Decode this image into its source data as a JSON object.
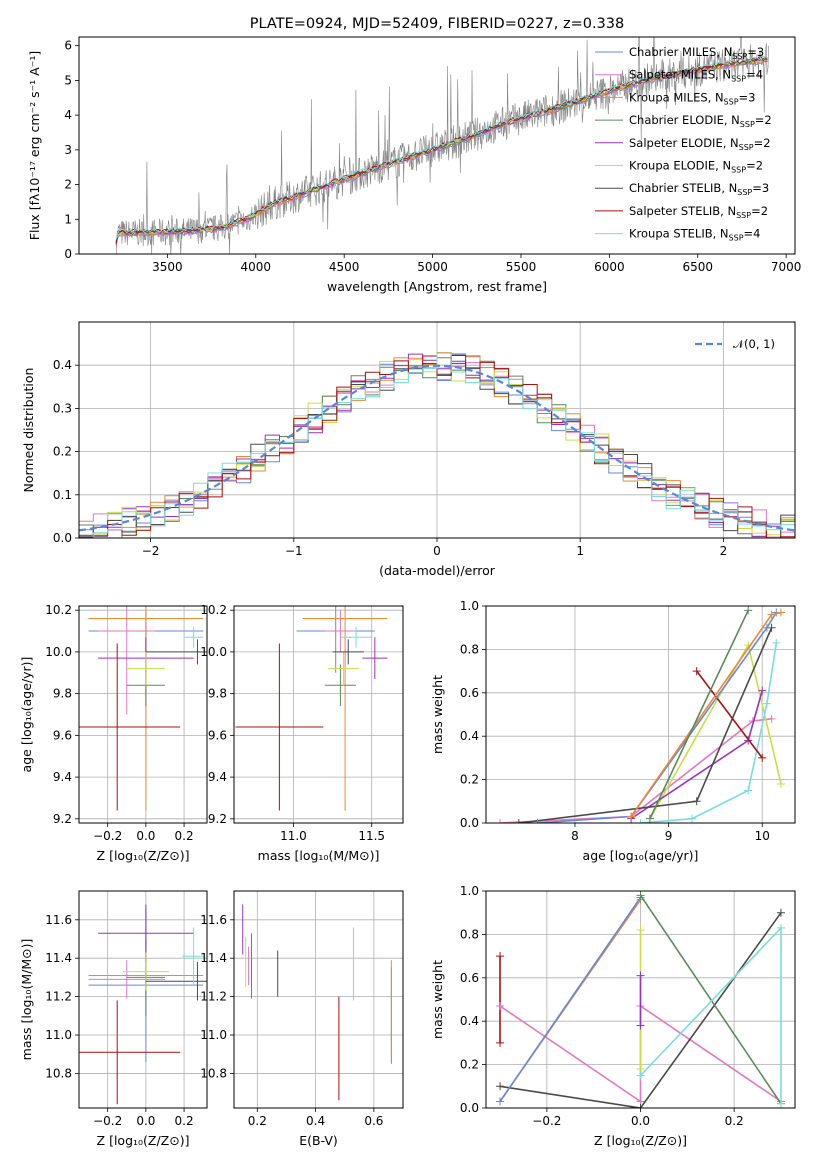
{
  "colors": {
    "chabrier_miles": "#6688dd",
    "salpeter_miles": "#e377c2",
    "kroupa_miles": "#ee8833",
    "chabrier_elodie": "#5a8a5a",
    "salpeter_elodie": "#9933bb",
    "kroupa_elodie": "#ccdd44",
    "chabrier_stelib": "#4a4a4a",
    "salpeter_stelib": "#aa1111",
    "kroupa_stelib": "#77dddd",
    "spectrum": "#808080",
    "normal": "#5588dd"
  },
  "chart_data": [
    {
      "id": "spectrum",
      "type": "line",
      "title": "PLATE=0924, MJD=52409, FIBERID=0227, z=0.338",
      "xlabel": "wavelength [Angstrom, rest frame]",
      "ylabel": "Flux [fλ10⁻¹⁷ erg cm⁻² s⁻¹ A⁻¹]",
      "xlim": [
        3000,
        7050
      ],
      "ylim": [
        0,
        6.25
      ],
      "xticks": [
        "3500",
        "4000",
        "4500",
        "5000",
        "5500",
        "6000",
        "6500",
        "7000"
      ],
      "yticks": [
        "0",
        "1",
        "2",
        "3",
        "4",
        "5",
        "6"
      ],
      "grid": false,
      "legend_position": "top-right",
      "legend": [
        "Chabrier MILES, N_SSP=3",
        "Salpeter MILES, N_SSP=4",
        "Kroupa MILES, N_SSP=3",
        "Chabrier ELODIE, N_SSP=2",
        "Salpeter ELODIE, N_SSP=2",
        "Kroupa ELODIE, N_SSP=2",
        "Chabrier STELIB, N_SSP=3",
        "Salpeter STELIB, N_SSP=2",
        "Kroupa STELIB, N_SSP=4"
      ],
      "model_x": [
        3210,
        3220,
        3400,
        3600,
        3800,
        3950,
        4100,
        4300,
        4500,
        4700,
        4850,
        5000,
        5200,
        5400,
        5600,
        5800,
        6000,
        6200,
        6400,
        6600,
        6800,
        6900
      ],
      "model_y": [
        0.3,
        0.6,
        0.62,
        0.65,
        0.75,
        1.0,
        1.45,
        1.8,
        2.15,
        2.5,
        2.75,
        3.0,
        3.35,
        3.75,
        4.05,
        4.35,
        4.7,
        5.0,
        5.2,
        5.4,
        5.55,
        5.6
      ]
    },
    {
      "id": "residuals",
      "type": "histogram",
      "xlabel": "(data-model)/error",
      "ylabel": "Normed distribution",
      "xlim": [
        -2.5,
        2.5
      ],
      "ylim": [
        0,
        0.5
      ],
      "xticks": [
        "−2",
        "−1",
        "0",
        "1",
        "2"
      ],
      "yticks": [
        "0.0",
        "0.1",
        "0.2",
        "0.3",
        "0.4"
      ],
      "grid": true,
      "legend_position": "top-right",
      "legend": [
        "𝒩(0, 1)"
      ]
    },
    {
      "id": "age_vs_Z",
      "type": "scatter",
      "xlabel": "Z [log₁₀(Z/Z⊙)]",
      "ylabel": "age  [log₁₀(age/yr)]",
      "xlim": [
        -0.35,
        0.32
      ],
      "ylim": [
        9.18,
        10.22
      ],
      "xticks": [
        "−0.2",
        "0.0",
        "0.2"
      ],
      "yticks": [
        "9.2",
        "9.4",
        "9.6",
        "9.8",
        "10.0",
        "10.2"
      ],
      "grid": true,
      "points": [
        {
          "series": "chabrier_miles",
          "x": 0.0,
          "y": 10.1,
          "xerr": 0.3,
          "yerr": 0.1
        },
        {
          "series": "salpeter_miles",
          "x": -0.1,
          "y": 10.1,
          "xerr": 0.15,
          "yerr": 0.4
        },
        {
          "series": "kroupa_miles",
          "x": 0.0,
          "y": 10.16,
          "xerr": 0.3,
          "yerr": 0.92
        },
        {
          "series": "chabrier_elodie",
          "x": 0.0,
          "y": 9.84,
          "xerr": 0.1,
          "yerr": 0.1
        },
        {
          "series": "salpeter_elodie",
          "x": 0.0,
          "y": 9.97,
          "xerr": 0.25,
          "yerr": 0.1
        },
        {
          "series": "kroupa_elodie",
          "x": 0.0,
          "y": 9.92,
          "xerr": 0.1,
          "yerr": 0.08
        },
        {
          "series": "chabrier_stelib",
          "x": 0.27,
          "y": 10.0,
          "xerr": 0.27,
          "yerr": 0.06
        },
        {
          "series": "salpeter_stelib",
          "x": -0.15,
          "y": 9.64,
          "xerr": 0.33,
          "yerr": 0.4
        },
        {
          "series": "kroupa_stelib",
          "x": 0.25,
          "y": 10.07,
          "xerr": 0.05,
          "yerr": 0.05
        }
      ]
    },
    {
      "id": "age_vs_mass",
      "type": "scatter",
      "xlabel": "mass [log₁₀(M/M⊙)]",
      "ylabel": "",
      "xlim": [
        10.62,
        11.7
      ],
      "ylim": [
        9.18,
        10.22
      ],
      "xticks": [
        "11.0",
        "11.5"
      ],
      "yticks": [
        "9.2",
        "9.4",
        "9.6",
        "9.8",
        "10.0",
        "10.2"
      ],
      "grid": true,
      "points": [
        {
          "series": "chabrier_miles",
          "x": 11.27,
          "y": 10.1,
          "xerr": 0.25,
          "yerr": 0.2
        },
        {
          "series": "salpeter_miles",
          "x": 11.3,
          "y": 10.1,
          "xerr": 0.1,
          "yerr": 0.1
        },
        {
          "series": "kroupa_miles",
          "x": 11.33,
          "y": 10.16,
          "xerr": 0.27,
          "yerr": 0.92
        },
        {
          "series": "chabrier_elodie",
          "x": 11.3,
          "y": 9.84,
          "xerr": 0.1,
          "yerr": 0.1
        },
        {
          "series": "salpeter_elodie",
          "x": 11.52,
          "y": 9.97,
          "xerr": 0.08,
          "yerr": 0.1
        },
        {
          "series": "kroupa_elodie",
          "x": 11.32,
          "y": 9.92,
          "xerr": 0.1,
          "yerr": 0.08
        },
        {
          "series": "chabrier_stelib",
          "x": 11.35,
          "y": 10.0,
          "xerr": 0.1,
          "yerr": 0.06
        },
        {
          "series": "salpeter_stelib",
          "x": 10.91,
          "y": 9.64,
          "xerr": 0.28,
          "yerr": 0.4
        },
        {
          "series": "kroupa_stelib",
          "x": 11.4,
          "y": 10.07,
          "xerr": 0.1,
          "yerr": 0.05
        }
      ]
    },
    {
      "id": "massweight_vs_age",
      "type": "line",
      "xlabel": "age  [log₁₀(age/yr)]",
      "ylabel": "mass weight",
      "xlim": [
        7.05,
        10.35
      ],
      "ylim": [
        0,
        1
      ],
      "xticks": [
        "8",
        "9",
        "10"
      ],
      "yticks": [
        "0.0",
        "0.2",
        "0.4",
        "0.6",
        "0.8",
        "1.0"
      ],
      "grid": true,
      "series": [
        {
          "series": "salpeter_miles",
          "points": [
            [
              7.2,
              0.0
            ],
            [
              8.6,
              0.03
            ],
            [
              9.9,
              0.47
            ],
            [
              10.1,
              0.48
            ]
          ]
        },
        {
          "series": "kroupa_elodie",
          "points": [
            [
              8.8,
              0.02
            ],
            [
              9.85,
              0.82
            ],
            [
              10.2,
              0.18
            ]
          ]
        },
        {
          "series": "kroupa_stelib",
          "points": [
            [
              8.7,
              0.0
            ],
            [
              9.25,
              0.02
            ],
            [
              9.85,
              0.15
            ],
            [
              10.05,
              0.55
            ],
            [
              10.15,
              0.83
            ]
          ]
        },
        {
          "series": "salpeter_elodie",
          "points": [
            [
              8.6,
              0.02
            ],
            [
              9.85,
              0.38
            ],
            [
              10.0,
              0.61
            ]
          ]
        },
        {
          "series": "chabrier_stelib",
          "points": [
            [
              7.4,
              0.0
            ],
            [
              9.3,
              0.1
            ],
            [
              10.1,
              0.9
            ]
          ]
        },
        {
          "series": "salpeter_stelib",
          "points": [
            [
              9.3,
              0.7
            ],
            [
              10.0,
              0.3
            ]
          ]
        },
        {
          "series": "chabrier_miles",
          "points": [
            [
              7.6,
              0.0
            ],
            [
              8.6,
              0.03
            ],
            [
              10.05,
              0.9
            ],
            [
              10.15,
              0.97
            ]
          ]
        },
        {
          "series": "kroupa_miles",
          "points": [
            [
              8.6,
              0.03
            ],
            [
              10.1,
              0.96
            ],
            [
              10.2,
              0.97
            ]
          ]
        },
        {
          "series": "chabrier_elodie",
          "points": [
            [
              8.8,
              0.02
            ],
            [
              9.85,
              0.98
            ]
          ]
        }
      ]
    },
    {
      "id": "mass_vs_Z",
      "type": "scatter",
      "xlabel": "Z [log₁₀(Z/Z⊙)]",
      "ylabel": "mass [log₁₀(M/M⊙)]",
      "xlim": [
        -0.35,
        0.32
      ],
      "ylim": [
        10.62,
        11.75
      ],
      "xticks": [
        "−0.2",
        "0.0",
        "0.2"
      ],
      "yticks": [
        "10.8",
        "11.0",
        "11.2",
        "11.4",
        "11.6"
      ],
      "grid": true,
      "points": [
        {
          "series": "chabrier_miles",
          "x": 0.0,
          "y": 11.26,
          "xerr": 0.3,
          "yerr": 0.4
        },
        {
          "series": "salpeter_miles",
          "x": -0.1,
          "y": 11.29,
          "xerr": 0.2,
          "yerr": 0.1
        },
        {
          "series": "kroupa_miles",
          "x": 0.0,
          "y": 11.31,
          "xerr": 0.3,
          "yerr": 0.1
        },
        {
          "series": "chabrier_elodie",
          "x": 0.0,
          "y": 11.3,
          "xerr": 0.1,
          "yerr": 0.2
        },
        {
          "series": "salpeter_elodie",
          "x": 0.0,
          "y": 11.53,
          "xerr": 0.25,
          "yerr": 0.15
        },
        {
          "series": "kroupa_elodie",
          "x": 0.0,
          "y": 11.33,
          "xerr": 0.12,
          "yerr": 0.1
        },
        {
          "series": "chabrier_stelib",
          "x": 0.27,
          "y": 11.28,
          "xerr": 0.27,
          "yerr": 0.1
        },
        {
          "series": "salpeter_stelib",
          "x": -0.15,
          "y": 10.91,
          "xerr": 0.33,
          "yerr": 0.27
        },
        {
          "series": "kroupa_stelib",
          "x": 0.25,
          "y": 11.41,
          "xerr": 0.06,
          "yerr": 0.15
        }
      ]
    },
    {
      "id": "mass_vs_ebv",
      "type": "scatter",
      "xlabel": "E(B-V)",
      "ylabel": "",
      "xlim": [
        0.12,
        0.7
      ],
      "ylim": [
        10.62,
        11.75
      ],
      "xticks": [
        "0.2",
        "0.4",
        "0.6"
      ],
      "yticks": [
        "10.8",
        "11.0",
        "11.2",
        "11.4",
        "11.6"
      ],
      "grid": true,
      "points": [
        {
          "series": "chabrier_miles",
          "x": 0.66,
          "y": 11.1,
          "xerr": 0.0,
          "yerr": 0.25
        },
        {
          "series": "salpeter_miles",
          "x": 0.17,
          "y": 11.36,
          "xerr": 0.0,
          "yerr": 0.1
        },
        {
          "series": "kroupa_miles",
          "x": 0.66,
          "y": 11.14,
          "xerr": 0.0,
          "yerr": 0.25
        },
        {
          "series": "chabrier_elodie",
          "x": 0.18,
          "y": 11.36,
          "xerr": 0.0,
          "yerr": 0.17
        },
        {
          "series": "salpeter_elodie",
          "x": 0.15,
          "y": 11.55,
          "xerr": 0.0,
          "yerr": 0.13
        },
        {
          "series": "kroupa_elodie",
          "x": 0.16,
          "y": 11.38,
          "xerr": 0.0,
          "yerr": 0.13
        },
        {
          "series": "chabrier_stelib",
          "x": 0.27,
          "y": 11.32,
          "xerr": 0.0,
          "yerr": 0.12
        },
        {
          "series": "salpeter_stelib",
          "x": 0.48,
          "y": 10.93,
          "xerr": 0.0,
          "yerr": 0.27
        },
        {
          "series": "kroupa_stelib",
          "x": 0.53,
          "y": 11.37,
          "xerr": 0.0,
          "yerr": 0.19
        }
      ]
    },
    {
      "id": "massweight_vs_Z",
      "type": "line",
      "xlabel": "Z [log₁₀(Z/Z⊙)]",
      "ylabel": "mass weight",
      "xlim": [
        -0.33,
        0.33
      ],
      "ylim": [
        0,
        1
      ],
      "xticks": [
        "−0.2",
        "0.0",
        "0.2"
      ],
      "yticks": [
        "0.0",
        "0.2",
        "0.4",
        "0.6",
        "0.8",
        "1.0"
      ],
      "grid": true,
      "series": [
        {
          "series": "salpeter_stelib",
          "points": [
            [
              -0.3,
              0.7
            ],
            [
              -0.3,
              0.3
            ]
          ]
        },
        {
          "series": "salpeter_miles",
          "points": [
            [
              -0.3,
              0.47
            ],
            [
              0.0,
              0.03
            ],
            [
              0.0,
              0.47
            ],
            [
              0.3,
              0.03
            ]
          ]
        },
        {
          "series": "chabrier_stelib",
          "points": [
            [
              -0.3,
              0.1
            ],
            [
              0.0,
              0.0
            ],
            [
              0.3,
              0.9
            ]
          ]
        },
        {
          "series": "kroupa_miles",
          "points": [
            [
              -0.3,
              0.03
            ],
            [
              0.0,
              0.96
            ]
          ]
        },
        {
          "series": "chabrier_miles",
          "points": [
            [
              -0.3,
              0.03
            ],
            [
              0.0,
              0.97
            ]
          ]
        },
        {
          "series": "chabrier_elodie",
          "points": [
            [
              0.0,
              0.98
            ],
            [
              0.3,
              0.02
            ]
          ]
        },
        {
          "series": "kroupa_elodie",
          "points": [
            [
              0.0,
              0.82
            ],
            [
              0.0,
              0.18
            ]
          ]
        },
        {
          "series": "kroupa_stelib",
          "points": [
            [
              0.0,
              0.15
            ],
            [
              0.3,
              0.83
            ],
            [
              0.3,
              0.02
            ]
          ]
        },
        {
          "series": "salpeter_elodie",
          "points": [
            [
              0.0,
              0.61
            ],
            [
              0.0,
              0.38
            ]
          ]
        }
      ]
    }
  ]
}
